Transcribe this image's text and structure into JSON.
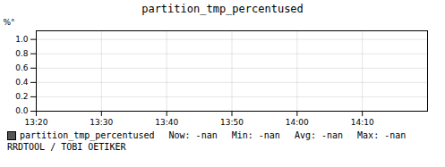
{
  "chart_data": {
    "type": "line",
    "title": "partition_tmp_percentused",
    "ylabel": "%°",
    "x": [],
    "series": [
      {
        "name": "partition_tmp_percentused",
        "color": "#555555",
        "values": []
      }
    ],
    "xlim": [
      0,
      60
    ],
    "xticks": [
      {
        "value": 0,
        "label": "13:20"
      },
      {
        "value": 10,
        "label": "13:30"
      },
      {
        "value": 20,
        "label": "13:40"
      },
      {
        "value": 30,
        "label": "13:50"
      },
      {
        "value": 40,
        "label": "14:00"
      },
      {
        "value": 50,
        "label": "14:10"
      }
    ],
    "ylim": [
      0.0,
      1.12
    ],
    "yticks": [
      {
        "value": 0.0,
        "label": "0.0"
      },
      0.2,
      0.4,
      0.6,
      0.8,
      {
        "value": 1.0,
        "label": "1.0"
      }
    ],
    "grid": true,
    "legend": "bottom",
    "annotations": [
      "Now: -nan",
      "Min: -nan",
      "Avg: -nan",
      "Max: -nan",
      "RRDTOOL / TOBI OETIKER"
    ]
  }
}
